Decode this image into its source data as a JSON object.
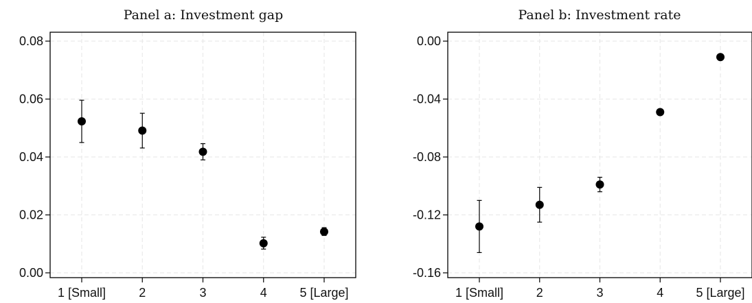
{
  "chart_data": [
    {
      "type": "scatter",
      "title": "Panel a: Investment gap",
      "categories": [
        "1 [Small]",
        "2",
        "3",
        "4",
        "5 [Large]"
      ],
      "values": [
        0.0523,
        0.0491,
        0.0418,
        0.0102,
        0.0142
      ],
      "ci_low": [
        0.045,
        0.0431,
        0.039,
        0.0082,
        0.0129
      ],
      "ci_high": [
        0.0596,
        0.0551,
        0.0446,
        0.0123,
        0.0156
      ],
      "ylim": [
        0.0,
        0.08
      ],
      "yticks": [
        0.0,
        0.02,
        0.04,
        0.06,
        0.08
      ],
      "ytick_labels": [
        "0.00",
        "0.02",
        "0.04",
        "0.06",
        "0.08"
      ],
      "grid": true
    },
    {
      "type": "scatter",
      "title": "Panel b: Investment rate",
      "categories": [
        "1 [Small]",
        "2",
        "3",
        "4",
        "5 [Large]"
      ],
      "values": [
        -0.128,
        -0.113,
        -0.099,
        -0.049,
        -0.011
      ],
      "ci_low": [
        -0.146,
        -0.125,
        -0.104,
        -0.051,
        -0.012
      ],
      "ci_high": [
        -0.11,
        -0.101,
        -0.094,
        -0.047,
        -0.01
      ],
      "ylim": [
        -0.16,
        0.0
      ],
      "yticks": [
        -0.16,
        -0.12,
        -0.08,
        -0.04,
        0.0
      ],
      "ytick_labels": [
        "-0.16",
        "-0.12",
        "-0.08",
        "-0.04",
        "0.00"
      ],
      "grid": true
    }
  ]
}
